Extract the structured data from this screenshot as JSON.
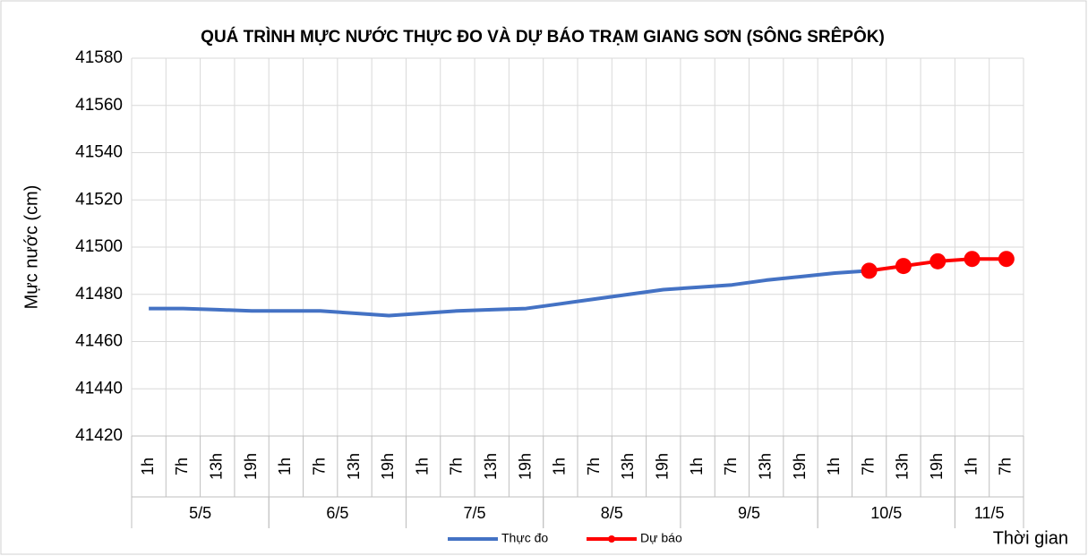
{
  "chart_data": {
    "type": "line",
    "title": "QUÁ TRÌNH MỰC NƯỚC THỰC ĐO VÀ DỰ BÁO TRẠM GIANG SƠN (SÔNG SRÊPÔK)",
    "ylabel": "Mực nước (cm)",
    "xlabel": "Thời gian",
    "groups": [
      {
        "label": "5/5",
        "categories": [
          "1h",
          "7h",
          "13h",
          "19h"
        ]
      },
      {
        "label": "6/5",
        "categories": [
          "1h",
          "7h",
          "13h",
          "19h"
        ]
      },
      {
        "label": "7/5",
        "categories": [
          "1h",
          "7h",
          "13h",
          "19h"
        ]
      },
      {
        "label": "8/5",
        "categories": [
          "1h",
          "7h",
          "13h",
          "19h"
        ]
      },
      {
        "label": "9/5",
        "categories": [
          "1h",
          "7h",
          "13h",
          "19h"
        ]
      },
      {
        "label": "10/5",
        "categories": [
          "1h",
          "7h",
          "13h",
          "19h"
        ]
      },
      {
        "label": "11/5",
        "categories": [
          "1h",
          "7h"
        ]
      }
    ],
    "series": [
      {
        "name": "Thực đo",
        "color": "#4472c4",
        "markers": false,
        "values": [
          41474,
          41474,
          41473.5,
          41473,
          41473,
          41473,
          41472,
          41471,
          41472,
          41473,
          41473.5,
          41474,
          41476,
          41478,
          41480,
          41482,
          41483,
          41484,
          41486,
          41487.5,
          41489,
          41490,
          null,
          null,
          null,
          null
        ]
      },
      {
        "name": "Dự báo",
        "color": "#ff0000",
        "markers": true,
        "values": [
          null,
          null,
          null,
          null,
          null,
          null,
          null,
          null,
          null,
          null,
          null,
          null,
          null,
          null,
          null,
          null,
          null,
          null,
          null,
          null,
          null,
          41490,
          41492,
          41494,
          41495,
          41495
        ]
      }
    ],
    "ylim": [
      41420,
      41580
    ],
    "yticks": [
      41420,
      41440,
      41460,
      41480,
      41500,
      41520,
      41540,
      41560,
      41580
    ],
    "grid": true,
    "legend": "bottom"
  }
}
